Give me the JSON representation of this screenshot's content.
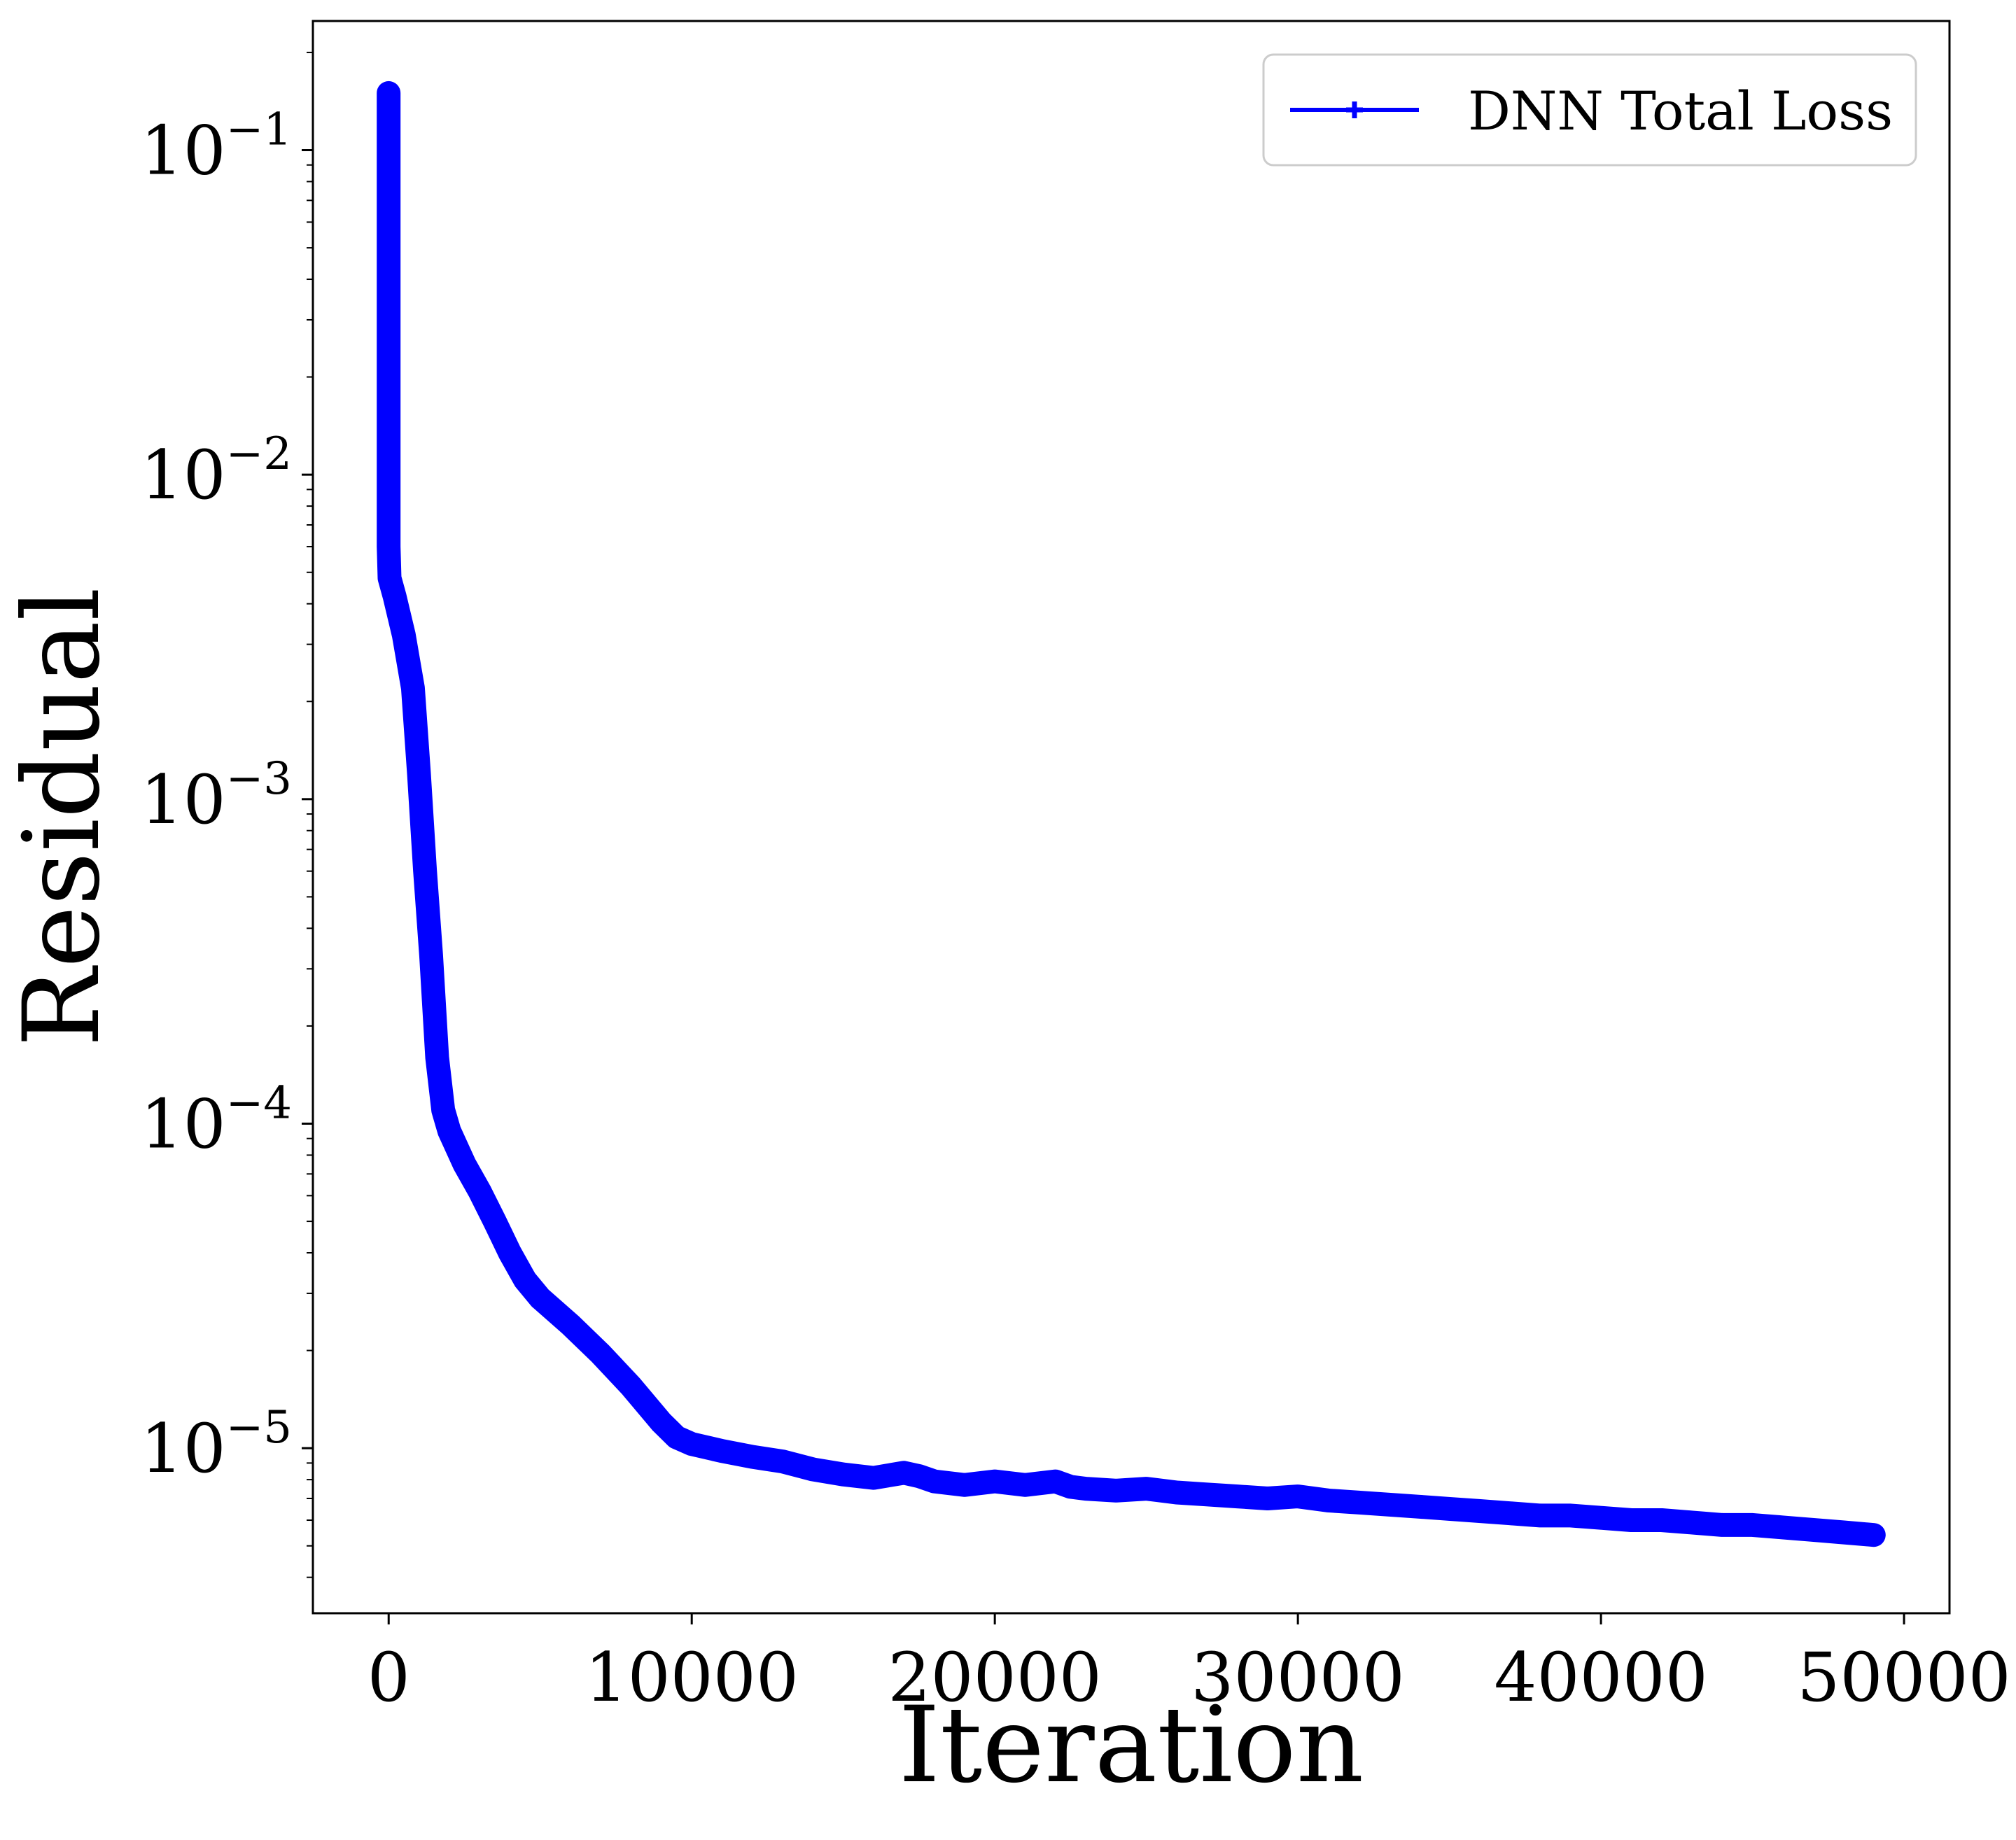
{
  "chart_data": {
    "type": "line",
    "title": "",
    "xlabel": "Iteration",
    "ylabel": "Residual",
    "x_scale": "linear",
    "y_scale": "log",
    "xlim": [
      -2500,
      51500
    ],
    "ylim": [
      3.1e-06,
      0.25
    ],
    "x_ticks": [
      0,
      10000,
      20000,
      30000,
      40000,
      50000
    ],
    "x_tick_labels": [
      "0",
      "10000",
      "20000",
      "30000",
      "40000",
      "50000"
    ],
    "y_ticks": [
      1e-05,
      0.0001,
      0.001,
      0.01,
      0.1
    ],
    "y_tick_labels": [
      {
        "base": "10",
        "exp": "−5"
      },
      {
        "base": "10",
        "exp": "−4"
      },
      {
        "base": "10",
        "exp": "−3"
      },
      {
        "base": "10",
        "exp": "−2"
      },
      {
        "base": "10",
        "exp": "−1"
      }
    ],
    "grid": false,
    "legend": {
      "position": "top-right"
    },
    "series": [
      {
        "name": "DNN Total Loss",
        "color": "#0000ff",
        "marker": "plus",
        "x": [
          0,
          0,
          0,
          0,
          0,
          0,
          30,
          200,
          500,
          800,
          1000,
          1200,
          1400,
          1600,
          1800,
          2000,
          2500,
          3000,
          3500,
          4000,
          4500,
          5000,
          6000,
          7000,
          8000,
          9000,
          9500,
          10000,
          11000,
          12000,
          13000,
          14000,
          15000,
          16000,
          17000,
          17500,
          18000,
          19000,
          20000,
          21000,
          22000,
          22500,
          23000,
          24000,
          25000,
          26000,
          27000,
          28000,
          29000,
          30000,
          31000,
          32000,
          33000,
          34000,
          35000,
          36000,
          37000,
          38000,
          39000,
          40000,
          41000,
          42000,
          43000,
          44000,
          45000,
          46000,
          47000,
          48000,
          49000
        ],
        "y": [
          0.15,
          0.08,
          0.03,
          0.015,
          0.008,
          0.006,
          0.0048,
          0.0042,
          0.0032,
          0.0022,
          0.0012,
          0.0006,
          0.00033,
          0.00016,
          0.00011,
          9.5e-05,
          7.5e-05,
          6.2e-05,
          5e-05,
          4e-05,
          3.3e-05,
          2.9e-05,
          2.4e-05,
          1.95e-05,
          1.55e-05,
          1.2e-05,
          1.08e-05,
          1.03e-05,
          9.8e-06,
          9.4e-06,
          9.1e-06,
          8.6e-06,
          8.3e-06,
          8.1e-06,
          8.4e-06,
          8.2e-06,
          7.9e-06,
          7.7e-06,
          7.9e-06,
          7.7e-06,
          7.9e-06,
          7.6e-06,
          7.5e-06,
          7.4e-06,
          7.5e-06,
          7.3e-06,
          7.2e-06,
          7.1e-06,
          7e-06,
          7.1e-06,
          6.9e-06,
          6.8e-06,
          6.7e-06,
          6.6e-06,
          6.5e-06,
          6.4e-06,
          6.3e-06,
          6.2e-06,
          6.2e-06,
          6.1e-06,
          6e-06,
          6e-06,
          5.9e-06,
          5.8e-06,
          5.8e-06,
          5.7e-06,
          5.6e-06,
          5.5e-06,
          5.4e-06
        ]
      }
    ]
  }
}
